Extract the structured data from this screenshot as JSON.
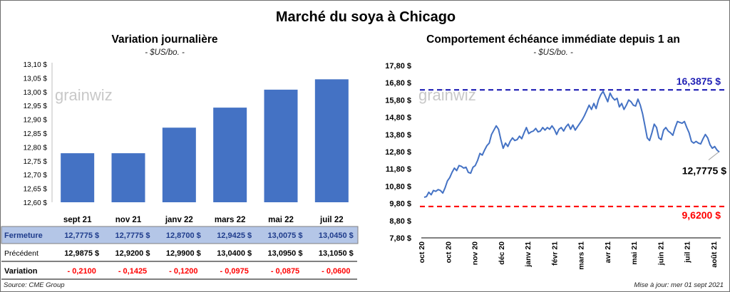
{
  "title": "Marché du soya à Chicago",
  "left": {
    "subtitle": "Variation journalière",
    "unit": "- $US/bo. -"
  },
  "right": {
    "subtitle": "Comportement  échéance immédiate depuis 1 an",
    "unit": "- $US/bo. -"
  },
  "watermark": "grainwiz",
  "chart_data": [
    {
      "type": "bar",
      "title": "Variation journalière",
      "categories": [
        "sept 21",
        "nov 21",
        "janv 22",
        "mars 22",
        "mai 22",
        "juil 22"
      ],
      "values": [
        12.7775,
        12.7775,
        12.87,
        12.9425,
        13.0075,
        13.045
      ],
      "ylim": [
        12.6,
        13.1
      ],
      "yticks": [
        "12,60 $",
        "12,65 $",
        "12,70 $",
        "12,75 $",
        "12,80 $",
        "12,85 $",
        "12,90 $",
        "12,95 $",
        "13,00 $",
        "13,05 $",
        "13,10 $"
      ],
      "color": "#4472c4",
      "table": {
        "rows": [
          {
            "label": "Fermeture",
            "values": [
              "12,7775  $",
              "12,7775  $",
              "12,8700  $",
              "12,9425  $",
              "13,0075  $",
              "13,0450  $"
            ],
            "color": "#1f3c8c",
            "bg": "#b4c6e7"
          },
          {
            "label": "Précédent",
            "values": [
              "12,9875  $",
              "12,9200  $",
              "12,9900  $",
              "13,0400  $",
              "13,0950  $",
              "13,1050  $"
            ],
            "color": "#000000",
            "bg": "#ffffff"
          },
          {
            "label": "Variation",
            "values": [
              "- 0,2100",
              "- 0,1425",
              "- 0,1200",
              "- 0,0975",
              "- 0,0875",
              "- 0,0600"
            ],
            "color": "#ff0000",
            "bg": "#ffffff"
          }
        ]
      }
    },
    {
      "type": "line",
      "title": "Comportement  échéance immédiate depuis 1 an",
      "ylim": [
        7.8,
        17.8
      ],
      "yticks": [
        "7,80 $",
        "8,80 $",
        "9,80 $",
        "10,80 $",
        "11,80 $",
        "12,80 $",
        "13,80 $",
        "14,80 $",
        "15,80 $",
        "16,80 $",
        "17,80 $"
      ],
      "xticks": [
        "oct 20",
        "oct 20",
        "nov 20",
        "déc 20",
        "janv 21",
        "févr 21",
        "mars 21",
        "avr 21",
        "mai 21",
        "juin 21",
        "juil 21",
        "août 21"
      ],
      "series": [
        {
          "color": "#4472c4",
          "values": [
            10.15,
            10.2,
            10.45,
            10.3,
            10.55,
            10.5,
            10.6,
            10.55,
            10.4,
            10.7,
            11.1,
            11.3,
            11.6,
            11.85,
            11.7,
            12.0,
            11.95,
            11.85,
            11.9,
            11.6,
            11.55,
            11.9,
            12.0,
            12.3,
            12.7,
            12.6,
            12.9,
            13.15,
            13.3,
            13.8,
            14.05,
            14.3,
            14.1,
            13.5,
            13.0,
            13.3,
            13.1,
            13.4,
            13.6,
            13.45,
            13.5,
            13.7,
            13.55,
            13.9,
            14.2,
            13.85,
            13.95,
            14.0,
            14.15,
            13.95,
            14.0,
            14.2,
            14.05,
            14.2,
            14.1,
            14.3,
            14.1,
            13.8,
            14.1,
            14.2,
            14.0,
            14.25,
            14.4,
            14.1,
            14.35,
            14.05,
            14.25,
            14.45,
            14.65,
            14.9,
            15.2,
            15.5,
            15.25,
            15.6,
            15.3,
            15.8,
            16.1,
            16.3,
            16.0,
            15.7,
            16.2,
            15.95,
            15.8,
            15.9,
            15.4,
            15.6,
            15.25,
            15.5,
            15.8,
            15.7,
            15.5,
            15.45,
            15.85,
            15.5,
            15.0,
            14.3,
            13.6,
            13.45,
            13.9,
            14.4,
            14.2,
            13.6,
            13.5,
            14.05,
            14.2,
            14.0,
            13.9,
            13.75,
            14.2,
            14.55,
            14.5,
            14.45,
            14.55,
            14.2,
            13.9,
            13.4,
            13.3,
            13.4,
            13.3,
            13.25,
            13.55,
            13.8,
            13.6,
            13.2,
            13.0,
            13.1,
            12.9,
            12.7775
          ]
        }
      ],
      "annotations": [
        {
          "label": "16,3875 $",
          "value": 16.3875,
          "color": "#1f1fb5",
          "style": "dashed"
        },
        {
          "label": "9,6200 $",
          "value": 9.62,
          "color": "#ff0000",
          "style": "dashed"
        },
        {
          "label": "12,7775 $",
          "value": 12.7775,
          "color": "#000000",
          "style": "callout"
        }
      ]
    }
  ],
  "footer": {
    "source": "Source: CME Group",
    "updated": "Mise à jour: mer 01 sept 2021"
  }
}
